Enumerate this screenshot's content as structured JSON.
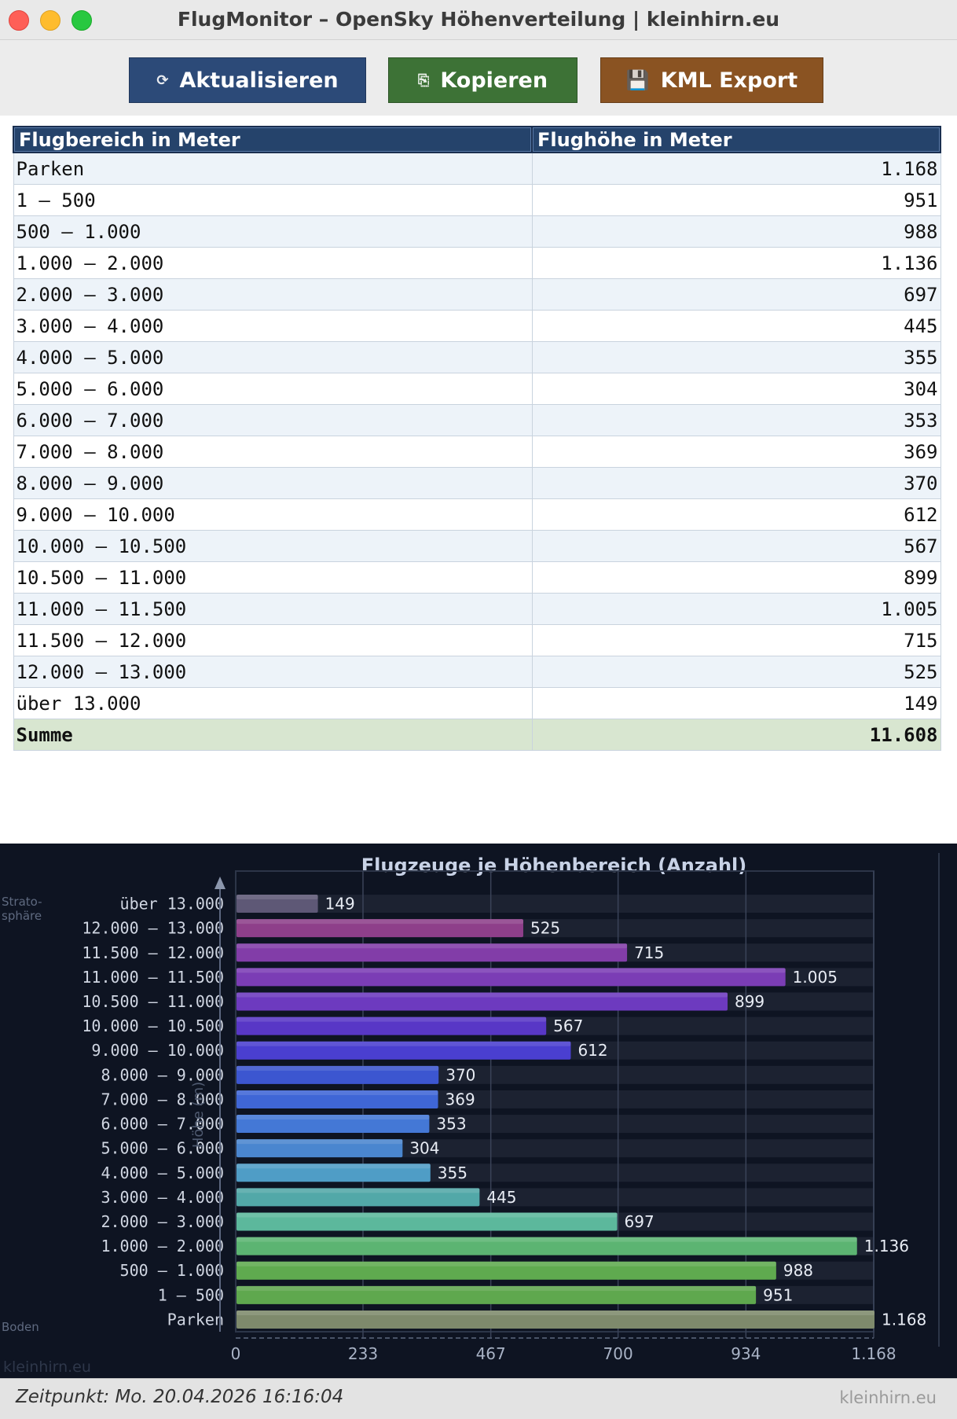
{
  "window": {
    "title": "FlugMonitor – OpenSky Höhenverteilung  |  kleinhirn.eu"
  },
  "toolbar": {
    "refresh": {
      "icon": "refresh-icon",
      "glyph": "⟳",
      "label": "Aktualisieren",
      "color": "#2c4a78"
    },
    "copy": {
      "icon": "copy-icon",
      "glyph": "⎘",
      "label": "Kopieren",
      "color": "#3d7236"
    },
    "kml": {
      "icon": "floppy-disk-icon",
      "glyph": "💾",
      "label": "KML Export",
      "color": "#8a5322"
    }
  },
  "table": {
    "headers": [
      "Flugbereich in Meter",
      "Flughöhe in Meter"
    ],
    "rows": [
      {
        "range": "Parken",
        "count": "1.168"
      },
      {
        "range": "1 – 500",
        "count": "951"
      },
      {
        "range": "500 – 1.000",
        "count": "988"
      },
      {
        "range": "1.000 – 2.000",
        "count": "1.136"
      },
      {
        "range": "2.000 – 3.000",
        "count": "697"
      },
      {
        "range": "3.000 – 4.000",
        "count": "445"
      },
      {
        "range": "4.000 – 5.000",
        "count": "355"
      },
      {
        "range": "5.000 – 6.000",
        "count": "304"
      },
      {
        "range": "6.000 – 7.000",
        "count": "353"
      },
      {
        "range": "7.000 – 8.000",
        "count": "369"
      },
      {
        "range": "8.000 – 9.000",
        "count": "370"
      },
      {
        "range": "9.000 – 10.000",
        "count": "612"
      },
      {
        "range": "10.000 – 10.500",
        "count": "567"
      },
      {
        "range": "10.500 – 11.000",
        "count": "899"
      },
      {
        "range": "11.000 – 11.500",
        "count": "1.005"
      },
      {
        "range": "11.500 – 12.000",
        "count": "715"
      },
      {
        "range": "12.000 – 13.000",
        "count": "525"
      },
      {
        "range": "über 13.000",
        "count": "149"
      }
    ],
    "sum": {
      "label": "Summe",
      "value": "11.608"
    }
  },
  "chart_data": {
    "type": "bar",
    "orientation": "horizontal",
    "title": "Flugzeuge je Höhenbereich  (Anzahl)",
    "ylabel": "Höhe (m)",
    "top_label_lines": [
      "Strato-",
      "sphäre"
    ],
    "bottom_label": "Boden",
    "watermark": "kleinhirn.eu",
    "categories": [
      "Parken",
      "1 – 500",
      "500 – 1.000",
      "1.000 – 2.000",
      "2.000 – 3.000",
      "3.000 – 4.000",
      "4.000 – 5.000",
      "5.000 – 6.000",
      "6.000 – 7.000",
      "7.000 – 8.000",
      "8.000 – 9.000",
      "9.000 – 10.000",
      "10.000 – 10.500",
      "10.500 – 11.000",
      "11.000 – 11.500",
      "11.500 – 12.000",
      "12.000 – 13.000",
      "über 13.000"
    ],
    "values": [
      1168,
      951,
      988,
      1136,
      697,
      445,
      355,
      304,
      353,
      369,
      370,
      612,
      567,
      899,
      1005,
      715,
      525,
      149
    ],
    "value_labels": [
      "1.168",
      "951",
      "988",
      "1.136",
      "697",
      "445",
      "355",
      "304",
      "353",
      "369",
      "370",
      "612",
      "567",
      "899",
      "1.005",
      "715",
      "525",
      "149"
    ],
    "colors": [
      "#7e8a6c",
      "#5fa84e",
      "#5faa4f",
      "#5cb472",
      "#5cb89c",
      "#52a8a8",
      "#4f9dc6",
      "#4a86cf",
      "#4478d6",
      "#3f66d6",
      "#3c56d0",
      "#4a3fd0",
      "#5837c6",
      "#6d3abf",
      "#7b3db5",
      "#823da8",
      "#8e3f8a",
      "#5e5876"
    ],
    "xlim": [
      0,
      1168
    ],
    "xticks": [
      0,
      233,
      467,
      700,
      934,
      1168
    ],
    "xtick_labels": [
      "0",
      "233",
      "467",
      "700",
      "934",
      "1.168"
    ]
  },
  "status": {
    "timestamp": "Zeitpunkt: Mo. 20.04.2026 16:16:04",
    "brand": "kleinhirn.eu"
  }
}
